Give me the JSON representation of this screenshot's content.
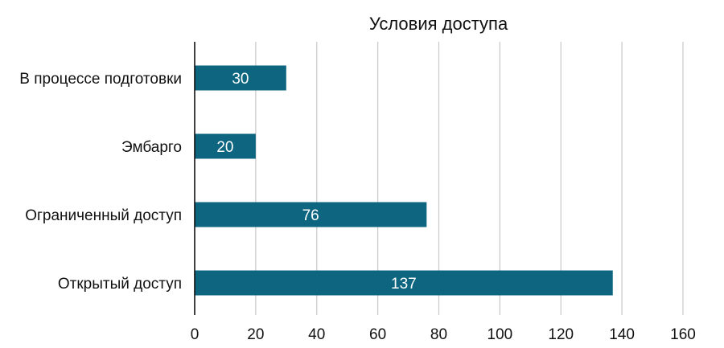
{
  "chart_data": {
    "type": "bar",
    "orientation": "horizontal",
    "title": "Условия доступа",
    "categories": [
      "В процессе подготовки",
      "Эмбарго",
      "Ограниченный доступ",
      "Открытый доступ"
    ],
    "values": [
      30,
      20,
      76,
      137
    ],
    "data_labels": [
      "30",
      "20",
      "76",
      "137"
    ],
    "xlim": [
      0,
      160
    ],
    "x_ticks": [
      0,
      20,
      40,
      60,
      80,
      100,
      120,
      140,
      160
    ],
    "grid": true,
    "xlabel": "",
    "ylabel": "",
    "bar_color": "#0d6580"
  }
}
